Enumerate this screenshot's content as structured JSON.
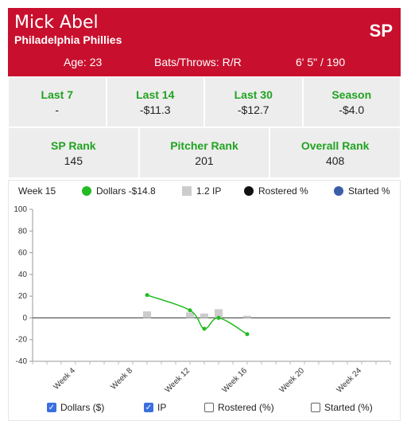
{
  "player": {
    "name": "Mick Abel",
    "team": "Philadelphia Phillies",
    "position": "SP",
    "age": "Age: 23",
    "bats_throws": "Bats/Throws: R/R",
    "height_weight": "6' 5\" / 190"
  },
  "value_stats": [
    {
      "label": "Last 7",
      "value": "-"
    },
    {
      "label": "Last 14",
      "value": "-$11.3"
    },
    {
      "label": "Last 30",
      "value": "-$12.7"
    },
    {
      "label": "Season",
      "value": "-$4.0"
    }
  ],
  "rank_stats": [
    {
      "label": "SP Rank",
      "value": "145"
    },
    {
      "label": "Pitcher Rank",
      "value": "201"
    },
    {
      "label": "Overall Rank",
      "value": "408"
    }
  ],
  "legend": {
    "week": "Week 15",
    "dollars": "Dollars -$14.8",
    "ip": "1.2 IP",
    "rostered": "Rostered %",
    "started": "Started %"
  },
  "colors": {
    "header": "#c8102e",
    "accent_green": "#21a321",
    "dollars_line": "#22bb22",
    "ip_bar": "#cccccc",
    "rostered": "#111111",
    "started": "#3b5ea8",
    "checkbox": "#3b6fe0"
  },
  "toggles": [
    {
      "label": "Dollars ($)",
      "checked": true
    },
    {
      "label": "IP",
      "checked": true
    },
    {
      "label": "Rostered (%)",
      "checked": false
    },
    {
      "label": "Started (%)",
      "checked": false
    }
  ],
  "chart_data": {
    "type": "line",
    "ylim": [
      -40,
      100
    ],
    "yticks": [
      -40,
      -20,
      0,
      20,
      40,
      60,
      80,
      100
    ],
    "xlim": [
      1,
      26
    ],
    "xticks": [
      {
        "x": 4,
        "label": "Week 4"
      },
      {
        "x": 8,
        "label": "Week 8"
      },
      {
        "x": 12,
        "label": "Week 12"
      },
      {
        "x": 16,
        "label": "Week 16"
      },
      {
        "x": 20,
        "label": "Week 20"
      },
      {
        "x": 24,
        "label": "Week 24"
      }
    ],
    "series": [
      {
        "name": "Dollars",
        "kind": "line",
        "x": [
          9,
          12,
          13,
          14,
          16
        ],
        "values": [
          21,
          7,
          -10,
          0,
          -15
        ]
      },
      {
        "name": "IP",
        "kind": "bar",
        "x": [
          9,
          12,
          13,
          14,
          16
        ],
        "values": [
          6,
          5,
          4,
          8,
          2
        ]
      }
    ]
  }
}
